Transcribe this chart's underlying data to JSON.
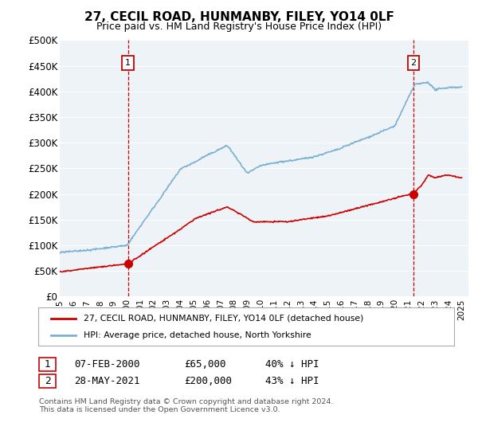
{
  "title": "27, CECIL ROAD, HUNMANBY, FILEY, YO14 0LF",
  "subtitle": "Price paid vs. HM Land Registry's House Price Index (HPI)",
  "ylabel_ticks": [
    "£0",
    "£50K",
    "£100K",
    "£150K",
    "£200K",
    "£250K",
    "£300K",
    "£350K",
    "£400K",
    "£450K",
    "£500K"
  ],
  "ytick_values": [
    0,
    50000,
    100000,
    150000,
    200000,
    250000,
    300000,
    350000,
    400000,
    450000,
    500000
  ],
  "xlim_start": 1995.0,
  "xlim_end": 2025.5,
  "ylim": [
    0,
    500000
  ],
  "legend_label_red": "27, CECIL ROAD, HUNMANBY, FILEY, YO14 0LF (detached house)",
  "legend_label_blue": "HPI: Average price, detached house, North Yorkshire",
  "sale1_date": "07-FEB-2000",
  "sale1_price": "£65,000",
  "sale1_hpi": "40% ↓ HPI",
  "sale1_x": 2000.1,
  "sale1_y": 65000,
  "sale2_date": "28-MAY-2021",
  "sale2_price": "£200,000",
  "sale2_hpi": "43% ↓ HPI",
  "sale2_x": 2021.4,
  "sale2_y": 200000,
  "vline1_x": 2000.1,
  "vline2_x": 2021.4,
  "footer": "Contains HM Land Registry data © Crown copyright and database right 2024.\nThis data is licensed under the Open Government Licence v3.0.",
  "hpi_color": "#7ab0d4",
  "price_color": "#cc0000",
  "vline_color": "#cc0000",
  "background_color": "#ffffff",
  "chart_bg_color": "#eef3f8",
  "grid_color": "#ffffff"
}
